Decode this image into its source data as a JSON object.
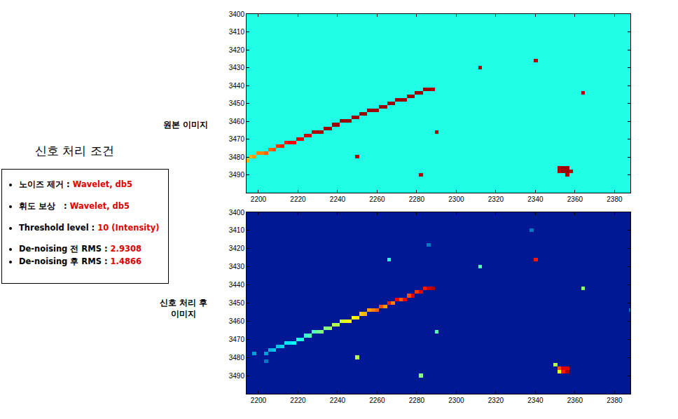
{
  "panel": {
    "title": "신호 처리 조건",
    "items": [
      {
        "label": "노이즈 제거 : ",
        "value": "Wavelet, db5"
      },
      {
        "label": "휘도 보상   : ",
        "value": "Wavelet, db5"
      },
      {
        "label": "Threshold level : ",
        "value": "10 (Intensity)"
      },
      {
        "label": "De-noising 전 RMS : ",
        "value": "2.9308"
      },
      {
        "label": "De-noising 후 RMS : ",
        "value": "1.4866"
      }
    ]
  },
  "chart_data": [
    {
      "type": "heatmap",
      "title": "원본 이미지",
      "color": "Jet",
      "grid": false,
      "xlim": [
        2194,
        2388
      ],
      "ylim": [
        3500,
        3400
      ],
      "xticks": [
        2200,
        2220,
        2240,
        2260,
        2280,
        2300,
        2320,
        2340,
        2360,
        2380
      ],
      "yticks": [
        3400,
        3410,
        3420,
        3430,
        3440,
        3450,
        3460,
        3470,
        3480,
        3490
      ],
      "zlim": [
        0,
        100
      ],
      "cell_size": 2,
      "background": 40,
      "cells": [
        [
          2194,
          3482,
          70
        ],
        [
          2196,
          3480,
          70
        ],
        [
          2198,
          3480,
          72
        ],
        [
          2200,
          3478,
          75
        ],
        [
          2202,
          3478,
          75
        ],
        [
          2204,
          3478,
          78
        ],
        [
          2206,
          3476,
          78
        ],
        [
          2208,
          3476,
          80
        ],
        [
          2210,
          3474,
          82
        ],
        [
          2212,
          3474,
          85
        ],
        [
          2214,
          3472,
          85
        ],
        [
          2216,
          3472,
          88
        ],
        [
          2218,
          3472,
          88
        ],
        [
          2220,
          3470,
          90
        ],
        [
          2222,
          3470,
          90
        ],
        [
          2224,
          3468,
          92
        ],
        [
          2226,
          3468,
          92
        ],
        [
          2228,
          3466,
          95
        ],
        [
          2230,
          3466,
          95
        ],
        [
          2232,
          3466,
          95
        ],
        [
          2234,
          3464,
          97
        ],
        [
          2236,
          3464,
          97
        ],
        [
          2238,
          3462,
          97
        ],
        [
          2240,
          3462,
          97
        ],
        [
          2242,
          3460,
          97
        ],
        [
          2244,
          3460,
          97
        ],
        [
          2246,
          3460,
          97
        ],
        [
          2248,
          3458,
          97
        ],
        [
          2250,
          3458,
          97
        ],
        [
          2252,
          3456,
          97
        ],
        [
          2254,
          3456,
          97
        ],
        [
          2256,
          3454,
          97
        ],
        [
          2258,
          3454,
          97
        ],
        [
          2260,
          3454,
          97
        ],
        [
          2262,
          3452,
          97
        ],
        [
          2264,
          3452,
          97
        ],
        [
          2266,
          3450,
          97
        ],
        [
          2268,
          3450,
          97
        ],
        [
          2270,
          3448,
          97
        ],
        [
          2272,
          3448,
          97
        ],
        [
          2274,
          3448,
          97
        ],
        [
          2276,
          3446,
          97
        ],
        [
          2278,
          3446,
          97
        ],
        [
          2280,
          3444,
          97
        ],
        [
          2282,
          3444,
          97
        ],
        [
          2284,
          3442,
          97
        ],
        [
          2286,
          3442,
          97
        ],
        [
          2288,
          3442,
          95
        ],
        [
          2312,
          3430,
          95
        ],
        [
          2340,
          3426,
          95
        ],
        [
          2364,
          3444,
          95
        ],
        [
          2290,
          3466,
          95
        ],
        [
          2250,
          3480,
          95
        ],
        [
          2282,
          3490,
          95
        ],
        [
          2352,
          3486,
          95
        ],
        [
          2354,
          3486,
          97
        ],
        [
          2356,
          3486,
          97
        ],
        [
          2352,
          3488,
          95
        ],
        [
          2354,
          3488,
          97
        ],
        [
          2356,
          3488,
          97
        ],
        [
          2358,
          3488,
          95
        ],
        [
          2356,
          3490,
          95
        ]
      ]
    },
    {
      "type": "heatmap",
      "title": "신호 처리 후 이미지",
      "color": "Jet",
      "grid": false,
      "xlim": [
        2194,
        2388
      ],
      "ylim": [
        3500,
        3400
      ],
      "xticks": [
        2200,
        2220,
        2240,
        2260,
        2280,
        2300,
        2320,
        2340,
        2360,
        2380
      ],
      "yticks": [
        3400,
        3410,
        3420,
        3430,
        3440,
        3450,
        3460,
        3470,
        3480,
        3490
      ],
      "zlim": [
        0,
        100
      ],
      "cell_size": 2,
      "background": 5,
      "cells": [
        [
          2198,
          3478,
          25
        ],
        [
          2204,
          3482,
          20
        ],
        [
          2204,
          3478,
          25
        ],
        [
          2206,
          3476,
          28
        ],
        [
          2208,
          3476,
          30
        ],
        [
          2210,
          3474,
          30
        ],
        [
          2212,
          3474,
          32
        ],
        [
          2214,
          3472,
          35
        ],
        [
          2216,
          3472,
          35
        ],
        [
          2218,
          3472,
          38
        ],
        [
          2220,
          3470,
          40
        ],
        [
          2222,
          3470,
          40
        ],
        [
          2224,
          3468,
          42
        ],
        [
          2226,
          3468,
          45
        ],
        [
          2228,
          3466,
          45
        ],
        [
          2230,
          3466,
          48
        ],
        [
          2232,
          3466,
          50
        ],
        [
          2234,
          3464,
          50
        ],
        [
          2236,
          3464,
          52
        ],
        [
          2238,
          3462,
          55
        ],
        [
          2240,
          3462,
          55
        ],
        [
          2242,
          3460,
          58
        ],
        [
          2244,
          3460,
          60
        ],
        [
          2246,
          3460,
          62
        ],
        [
          2248,
          3458,
          62
        ],
        [
          2250,
          3458,
          65
        ],
        [
          2252,
          3456,
          68
        ],
        [
          2254,
          3456,
          70
        ],
        [
          2256,
          3454,
          72
        ],
        [
          2258,
          3454,
          75
        ],
        [
          2260,
          3454,
          78
        ],
        [
          2262,
          3452,
          80
        ],
        [
          2264,
          3452,
          72
        ],
        [
          2266,
          3450,
          85
        ],
        [
          2268,
          3450,
          75
        ],
        [
          2270,
          3448,
          88
        ],
        [
          2272,
          3448,
          78
        ],
        [
          2274,
          3448,
          88
        ],
        [
          2276,
          3446,
          80
        ],
        [
          2278,
          3446,
          90
        ],
        [
          2280,
          3444,
          82
        ],
        [
          2282,
          3444,
          90
        ],
        [
          2284,
          3442,
          85
        ],
        [
          2286,
          3442,
          92
        ],
        [
          2288,
          3442,
          95
        ],
        [
          2312,
          3430,
          45
        ],
        [
          2266,
          3426,
          40
        ],
        [
          2340,
          3426,
          85
        ],
        [
          2364,
          3442,
          50
        ],
        [
          2290,
          3466,
          45
        ],
        [
          2250,
          3480,
          55
        ],
        [
          2282,
          3490,
          50
        ],
        [
          2350,
          3484,
          55
        ],
        [
          2352,
          3486,
          80
        ],
        [
          2354,
          3486,
          90
        ],
        [
          2356,
          3486,
          90
        ],
        [
          2352,
          3488,
          60
        ],
        [
          2354,
          3488,
          85
        ],
        [
          2356,
          3488,
          95
        ],
        [
          2286,
          3418,
          20
        ],
        [
          2338,
          3410,
          20
        ],
        [
          2388,
          3454,
          20
        ]
      ]
    }
  ]
}
